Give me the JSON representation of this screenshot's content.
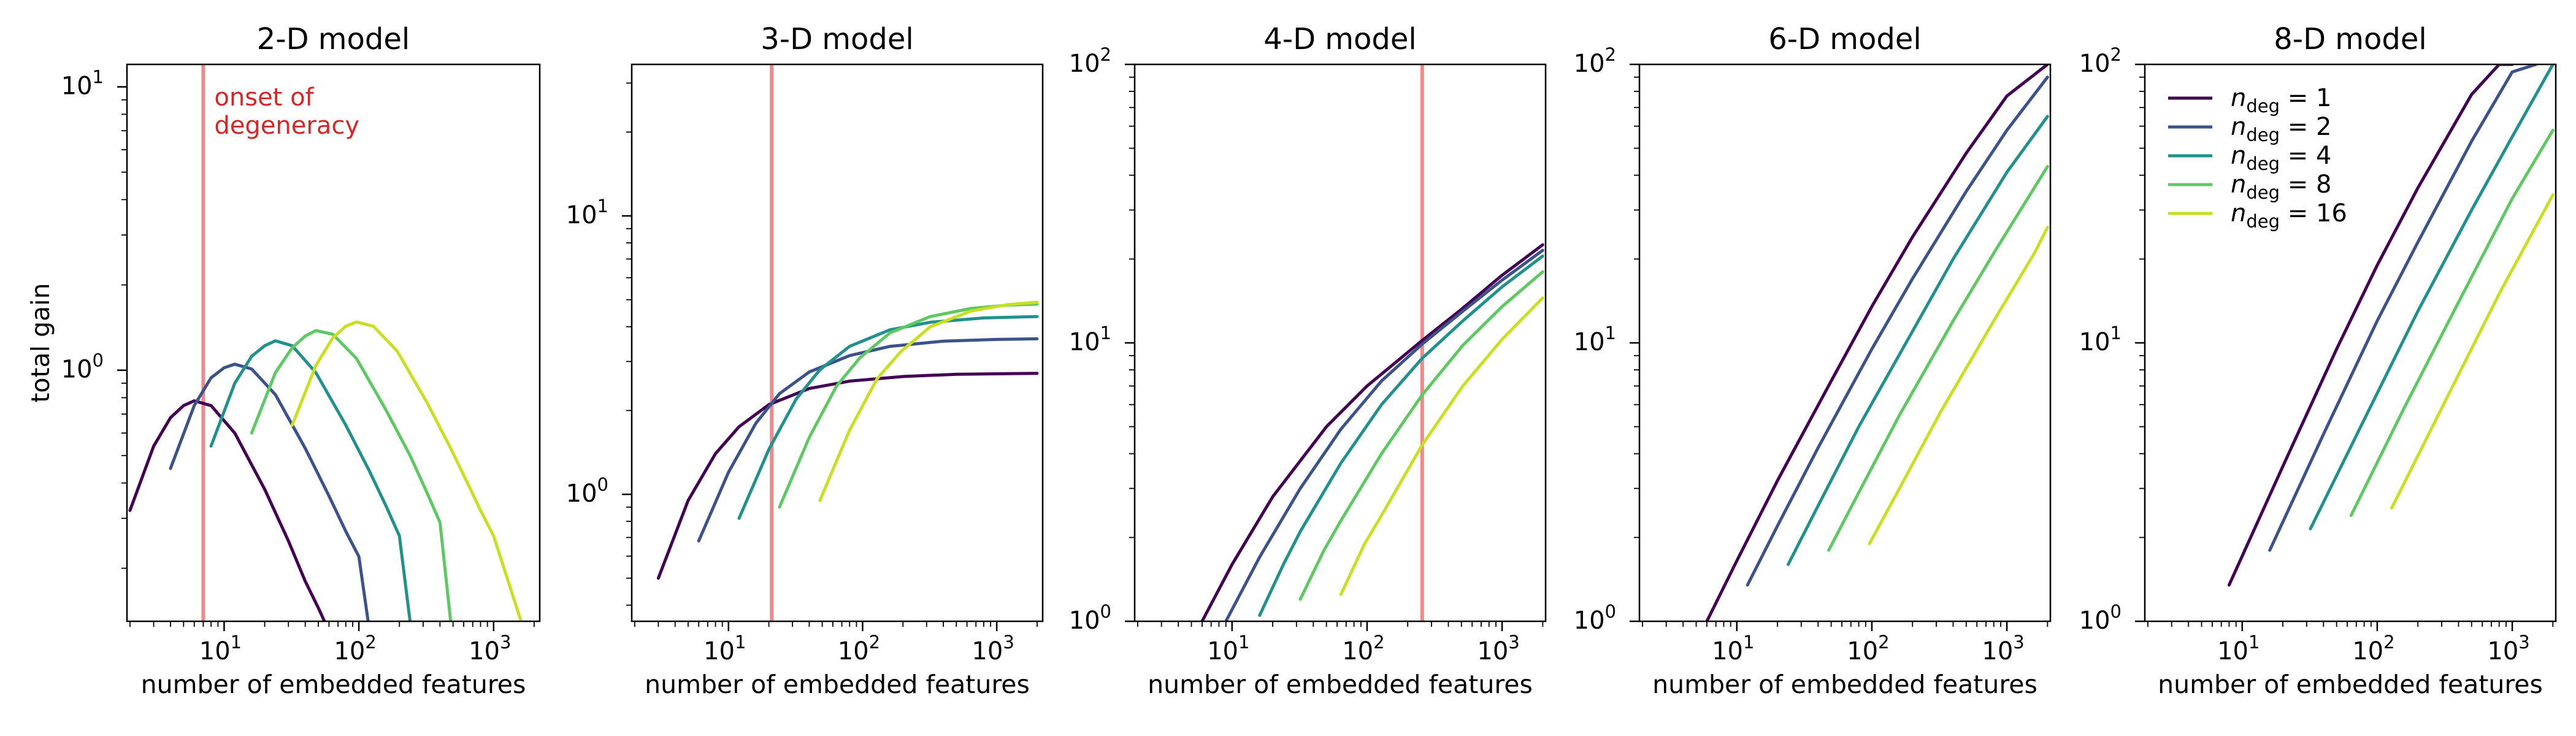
{
  "chart_data": [
    {
      "type": "line",
      "title": "2-D model",
      "xlabel": "number of embedded features",
      "ylabel": "total gain",
      "x_scale": "log",
      "y_scale": "log",
      "xlim": [
        1.9,
        2200
      ],
      "ylim": [
        0.13,
        12
      ],
      "x_tick_labels": [
        "10^1",
        "10^2",
        "10^3"
      ],
      "y_tick_labels": [
        "10^0",
        "10^1"
      ],
      "vline": {
        "x": 7,
        "color": "#f08a8a"
      },
      "annotation": {
        "text": [
          "onset of",
          "degeneracy"
        ],
        "color": "#d62728"
      },
      "series": [
        {
          "name": "n_deg = 1",
          "color": "#440154",
          "x": [
            2,
            3,
            4,
            5,
            6,
            8,
            12,
            20,
            30,
            40,
            50,
            60
          ],
          "y": [
            0.32,
            0.54,
            0.68,
            0.75,
            0.78,
            0.75,
            0.6,
            0.38,
            0.25,
            0.18,
            0.145,
            0.12
          ]
        },
        {
          "name": "n_deg = 2",
          "color": "#3b528b",
          "x": [
            4,
            6,
            8,
            10,
            12,
            16,
            24,
            40,
            60,
            80,
            100,
            120
          ],
          "y": [
            0.45,
            0.75,
            0.94,
            1.02,
            1.05,
            1.01,
            0.82,
            0.53,
            0.36,
            0.27,
            0.22,
            0.12
          ]
        },
        {
          "name": "n_deg = 4",
          "color": "#21918c",
          "x": [
            8,
            12,
            16,
            20,
            24,
            32,
            48,
            80,
            120,
            160,
            200,
            240
          ],
          "y": [
            0.54,
            0.9,
            1.12,
            1.22,
            1.27,
            1.22,
            0.98,
            0.64,
            0.44,
            0.33,
            0.26,
            0.13
          ]
        },
        {
          "name": "n_deg = 8",
          "color": "#5ec962",
          "x": [
            16,
            24,
            32,
            40,
            48,
            64,
            96,
            160,
            240,
            320,
            400,
            480
          ],
          "y": [
            0.6,
            0.98,
            1.2,
            1.32,
            1.38,
            1.34,
            1.1,
            0.72,
            0.5,
            0.37,
            0.29,
            0.13
          ]
        },
        {
          "name": "n_deg = 16",
          "color": "#c8e020",
          "x": [
            32,
            48,
            64,
            80,
            96,
            128,
            192,
            320,
            480,
            640,
            800,
            1000,
            1600
          ],
          "y": [
            0.64,
            1.04,
            1.3,
            1.43,
            1.48,
            1.43,
            1.17,
            0.77,
            0.53,
            0.4,
            0.32,
            0.26,
            0.13
          ]
        }
      ]
    },
    {
      "type": "line",
      "title": "3-D model",
      "xlabel": "number of embedded features",
      "x_scale": "log",
      "y_scale": "log",
      "xlim": [
        1.9,
        2200
      ],
      "ylim": [
        0.35,
        35
      ],
      "x_tick_labels": [
        "10^1",
        "10^2",
        "10^3"
      ],
      "y_tick_labels": [
        "10^0",
        "10^1"
      ],
      "vline": {
        "x": 21,
        "color": "#f08a8a"
      },
      "series": [
        {
          "name": "n_deg = 1",
          "color": "#440154",
          "x": [
            3,
            5,
            8,
            12,
            20,
            40,
            80,
            200,
            500,
            2000
          ],
          "y": [
            0.5,
            0.95,
            1.4,
            1.75,
            2.1,
            2.4,
            2.55,
            2.65,
            2.7,
            2.72
          ]
        },
        {
          "name": "n_deg = 2",
          "color": "#3b528b",
          "x": [
            6,
            10,
            16,
            24,
            40,
            80,
            160,
            400,
            1000,
            2000
          ],
          "y": [
            0.68,
            1.2,
            1.8,
            2.3,
            2.75,
            3.15,
            3.4,
            3.55,
            3.6,
            3.62
          ]
        },
        {
          "name": "n_deg = 4",
          "color": "#21918c",
          "x": [
            12,
            20,
            32,
            48,
            80,
            160,
            320,
            800,
            2000
          ],
          "y": [
            0.82,
            1.45,
            2.2,
            2.8,
            3.4,
            3.9,
            4.15,
            4.3,
            4.35
          ]
        },
        {
          "name": "n_deg = 8",
          "color": "#5ec962",
          "x": [
            24,
            40,
            64,
            96,
            160,
            320,
            640,
            1200,
            2000
          ],
          "y": [
            0.9,
            1.6,
            2.45,
            3.1,
            3.8,
            4.35,
            4.65,
            4.78,
            4.82
          ]
        },
        {
          "name": "n_deg = 16",
          "color": "#c8e020",
          "x": [
            48,
            80,
            128,
            192,
            320,
            640,
            1200,
            2000
          ],
          "y": [
            0.95,
            1.7,
            2.6,
            3.25,
            4.0,
            4.55,
            4.8,
            4.9
          ]
        }
      ]
    },
    {
      "type": "line",
      "title": "4-D model",
      "xlabel": "number of embedded features",
      "x_scale": "log",
      "y_scale": "log",
      "xlim": [
        1.9,
        2100
      ],
      "ylim": [
        1,
        100
      ],
      "x_tick_labels": [
        "10^1",
        "10^2",
        "10^3"
      ],
      "y_tick_labels": [
        "10^0",
        "10^1",
        "10^2"
      ],
      "vline": {
        "x": 256,
        "color": "#f08a8a"
      },
      "series": [
        {
          "name": "n_deg = 1",
          "color": "#440154",
          "x": [
            6,
            10,
            20,
            50,
            100,
            256,
            500,
            1000,
            2000
          ],
          "y": [
            1.0,
            1.6,
            2.8,
            5.0,
            7.0,
            10.2,
            13.2,
            17.5,
            22.5
          ]
        },
        {
          "name": "n_deg = 2",
          "color": "#3b528b",
          "x": [
            9,
            16,
            32,
            64,
            128,
            256,
            512,
            1000,
            2000
          ],
          "y": [
            1.0,
            1.7,
            3.0,
            4.9,
            7.3,
            9.9,
            13.0,
            16.8,
            21.5
          ]
        },
        {
          "name": "n_deg = 4",
          "color": "#21918c",
          "x": [
            16,
            24,
            32,
            64,
            128,
            256,
            512,
            1000,
            2000
          ],
          "y": [
            1.05,
            1.6,
            2.1,
            3.7,
            6.0,
            8.8,
            12.0,
            15.9,
            20.5
          ]
        },
        {
          "name": "n_deg = 8",
          "color": "#5ec962",
          "x": [
            32,
            48,
            64,
            128,
            256,
            512,
            1000,
            2000
          ],
          "y": [
            1.2,
            1.8,
            2.3,
            4.0,
            6.5,
            9.8,
            13.5,
            18.0
          ]
        },
        {
          "name": "n_deg = 16",
          "color": "#c8e020",
          "x": [
            64,
            96,
            128,
            256,
            512,
            1000,
            2000
          ],
          "y": [
            1.25,
            1.9,
            2.4,
            4.3,
            7.0,
            10.3,
            14.5
          ]
        }
      ]
    },
    {
      "type": "line",
      "title": "6-D model",
      "xlabel": "number of embedded features",
      "x_scale": "log",
      "y_scale": "log",
      "xlim": [
        1.9,
        2100
      ],
      "ylim": [
        1,
        100
      ],
      "x_tick_labels": [
        "10^1",
        "10^2",
        "10^3"
      ],
      "y_tick_labels": [
        "10^0",
        "10^1",
        "10^2"
      ],
      "series": [
        {
          "name": "n_deg = 1",
          "color": "#440154",
          "x": [
            6,
            10,
            20,
            50,
            100,
            200,
            500,
            1000,
            2000
          ],
          "y": [
            1.0,
            1.65,
            3.2,
            7.3,
            13.5,
            24,
            48,
            77,
            100
          ]
        },
        {
          "name": "n_deg = 2",
          "color": "#3b528b",
          "x": [
            12,
            20,
            40,
            100,
            200,
            500,
            1000,
            2000
          ],
          "y": [
            1.35,
            2.2,
            4.2,
            9.5,
            17,
            35,
            58,
            90
          ]
        },
        {
          "name": "n_deg = 4",
          "color": "#21918c",
          "x": [
            24,
            40,
            80,
            200,
            400,
            1000,
            2000
          ],
          "y": [
            1.6,
            2.6,
            5.0,
            11,
            20,
            41,
            65
          ]
        },
        {
          "name": "n_deg = 8",
          "color": "#5ec962",
          "x": [
            48,
            80,
            160,
            400,
            800,
            2000
          ],
          "y": [
            1.8,
            2.9,
            5.5,
            12,
            21,
            43
          ]
        },
        {
          "name": "n_deg = 16",
          "color": "#c8e020",
          "x": [
            96,
            160,
            320,
            800,
            1600,
            2000
          ],
          "y": [
            1.9,
            3.0,
            5.6,
            12,
            21,
            26
          ]
        }
      ]
    },
    {
      "type": "line",
      "title": "8-D model",
      "xlabel": "number of embedded features",
      "x_scale": "log",
      "y_scale": "log",
      "xlim": [
        1.9,
        2100
      ],
      "ylim": [
        1,
        100
      ],
      "x_tick_labels": [
        "10^1",
        "10^2",
        "10^3"
      ],
      "y_tick_labels": [
        "10^0",
        "10^1",
        "10^2"
      ],
      "legend": {
        "placement": "top-left",
        "entries": [
          {
            "label": "n_deg = 1",
            "sub": "deg",
            "value": "1",
            "color": "#440154"
          },
          {
            "label": "n_deg = 2",
            "sub": "deg",
            "value": "2",
            "color": "#3b528b"
          },
          {
            "label": "n_deg = 4",
            "sub": "deg",
            "value": "4",
            "color": "#21918c"
          },
          {
            "label": "n_deg = 8",
            "sub": "deg",
            "value": "8",
            "color": "#5ec962"
          },
          {
            "label": "n_deg = 16",
            "sub": "deg",
            "value": "16",
            "color": "#c8e020"
          }
        ]
      },
      "series": [
        {
          "name": "n_deg = 1",
          "color": "#440154",
          "x": [
            8,
            20,
            50,
            100,
            200,
            500,
            800,
            1000
          ],
          "y": [
            1.35,
            3.6,
            9.5,
            19,
            36,
            78,
            100,
            100
          ]
        },
        {
          "name": "n_deg = 2",
          "color": "#3b528b",
          "x": [
            16,
            40,
            100,
            200,
            500,
            1000,
            1500
          ],
          "y": [
            1.8,
            4.7,
            12,
            23,
            53,
            94,
            100
          ]
        },
        {
          "name": "n_deg = 4",
          "color": "#21918c",
          "x": [
            32,
            80,
            200,
            500,
            1000,
            2000
          ],
          "y": [
            2.15,
            5.3,
            13,
            30,
            55,
            100
          ]
        },
        {
          "name": "n_deg = 8",
          "color": "#5ec962",
          "x": [
            64,
            160,
            400,
            1000,
            2000
          ],
          "y": [
            2.4,
            5.9,
            14,
            33,
            58
          ]
        },
        {
          "name": "n_deg = 16",
          "color": "#c8e020",
          "x": [
            128,
            320,
            800,
            2000
          ],
          "y": [
            2.55,
            6.2,
            15,
            34
          ]
        }
      ]
    }
  ]
}
